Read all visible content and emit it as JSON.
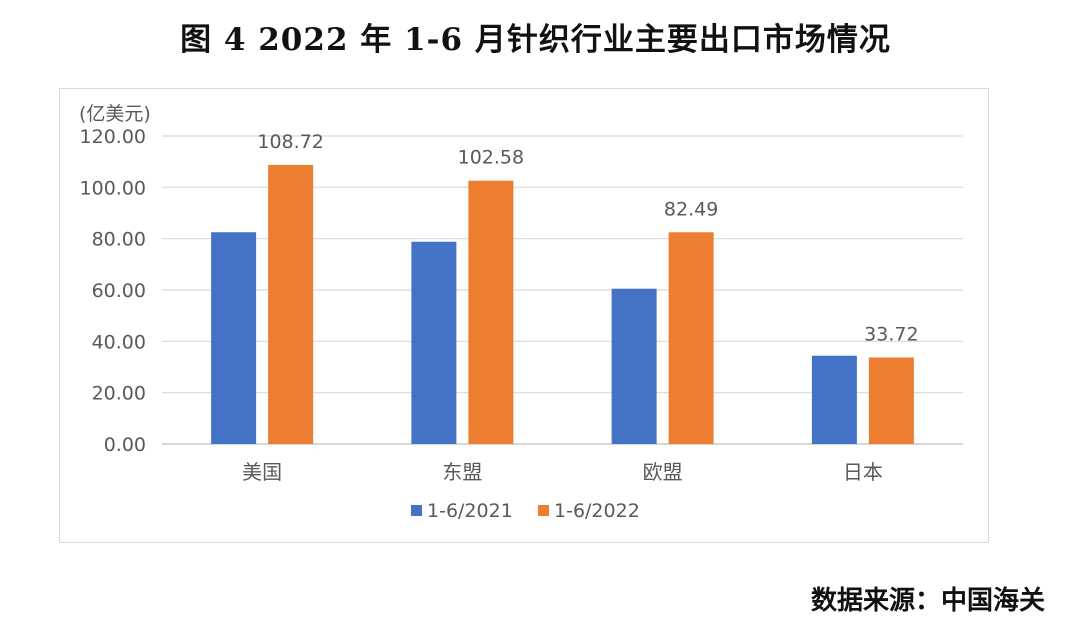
{
  "title": "图 4 2022 年 1-6 月针织行业主要出口市场情况",
  "source": "数据来源：中国海关",
  "chart_data": {
    "type": "bar",
    "unit_label": "(亿美元)",
    "categories": [
      "美国",
      "东盟",
      "欧盟",
      "日本"
    ],
    "series": [
      {
        "name": "1-6/2021",
        "color": "#4472c4",
        "values": [
          82.5,
          78.8,
          60.5,
          34.4
        ],
        "labels": [
          "",
          "",
          "",
          ""
        ]
      },
      {
        "name": "1-6/2022",
        "color": "#ed7d31",
        "values": [
          108.72,
          102.58,
          82.49,
          33.72
        ],
        "labels": [
          "108.72",
          "102.58",
          "82.49",
          "33.72"
        ]
      }
    ],
    "ylim": [
      0,
      120
    ],
    "yticks": [
      "0.00",
      "20.00",
      "40.00",
      "60.00",
      "80.00",
      "100.00",
      "120.00"
    ],
    "grid": true,
    "legend_position": "bottom"
  }
}
